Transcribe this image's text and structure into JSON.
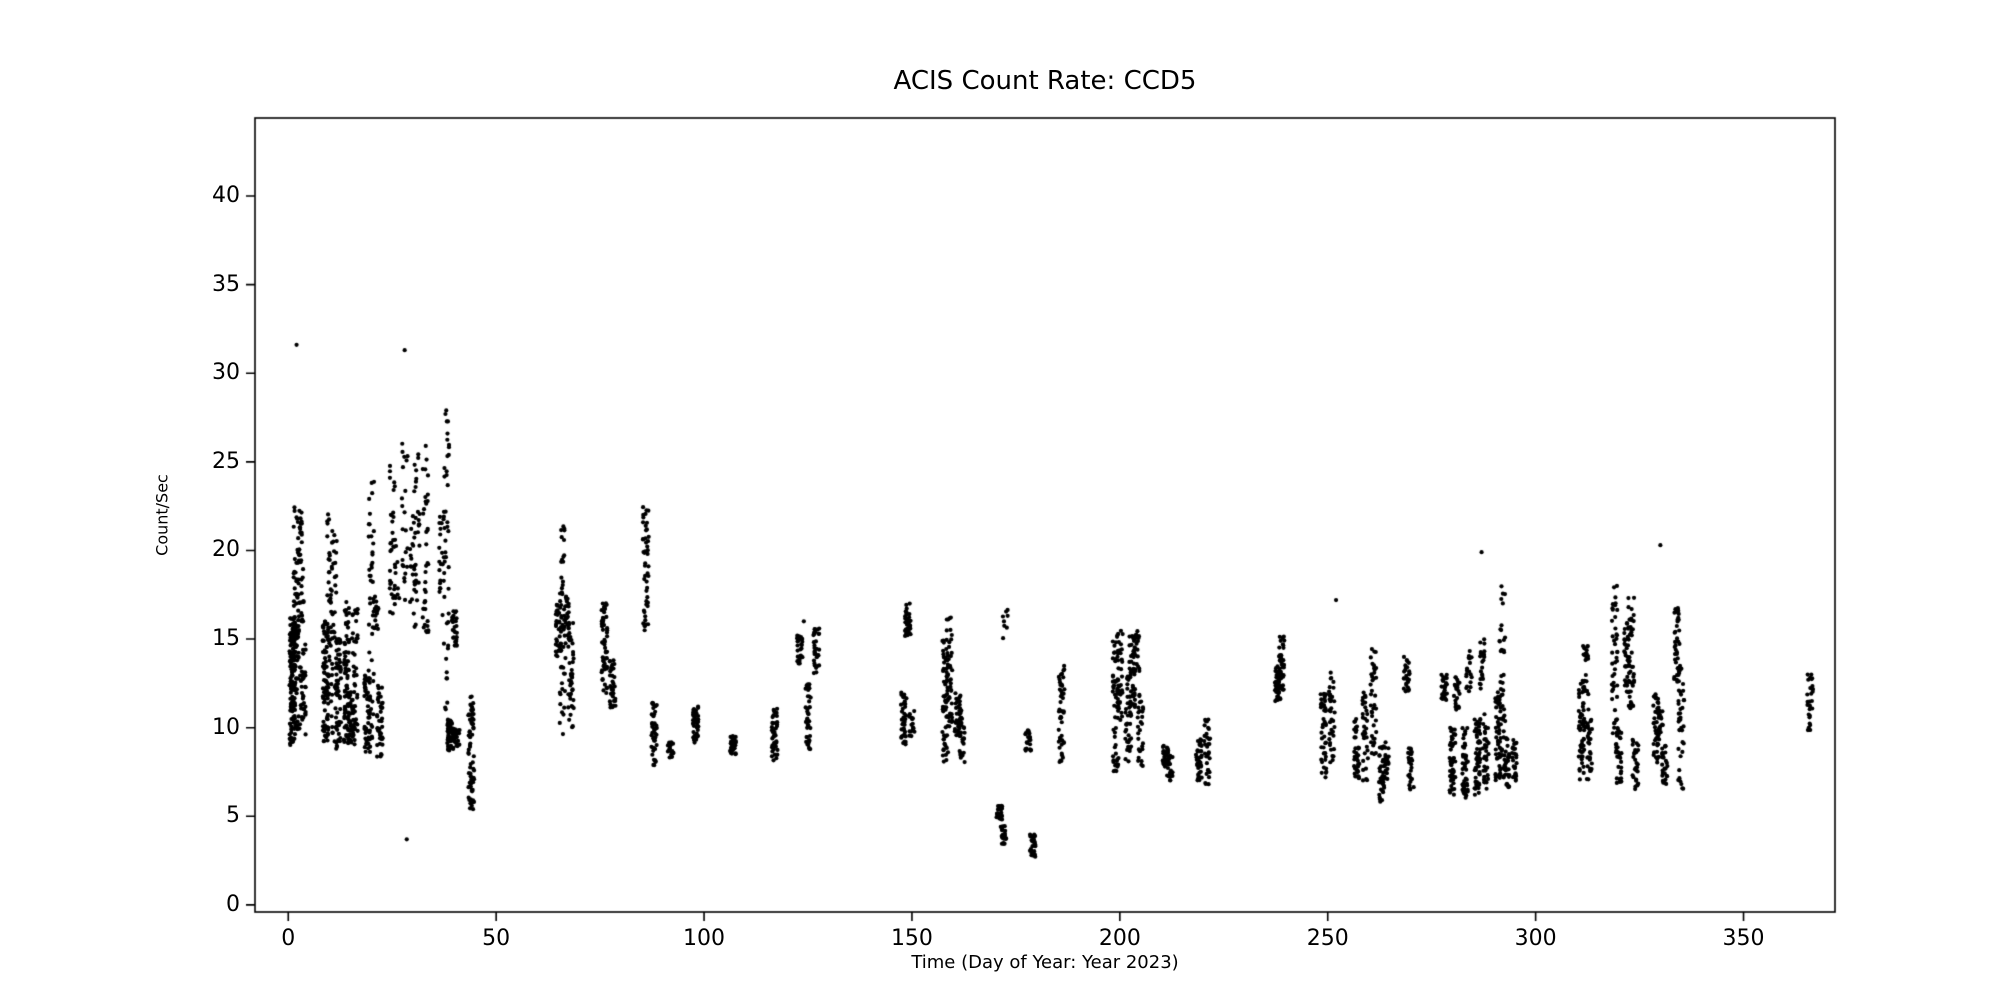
{
  "chart_data": {
    "type": "scatter",
    "title": "ACIS Count Rate: CCD5",
    "xlabel": "Time (Day of Year: Year 2023)",
    "ylabel": "Count/Sec",
    "xlim": [
      -8,
      372
    ],
    "ylim": [
      -0.4,
      44.4
    ],
    "xticks": [
      0,
      50,
      100,
      150,
      200,
      250,
      300,
      350
    ],
    "yticks": [
      0,
      5,
      10,
      15,
      20,
      25,
      30,
      35,
      40
    ],
    "grid": false,
    "legend": null,
    "marker_color": "#000000",
    "marker_radius_px": 2.1,
    "background_color": "#ffffff",
    "clusters_note": "each cluster = [day_of_year, count_rate_min, count_rate_max, approx_point_count]; vertical bands of dots",
    "clusters": [
      [
        1,
        9,
        16.2,
        130
      ],
      [
        1.5,
        13,
        16,
        60
      ],
      [
        2,
        9.5,
        22.5,
        70
      ],
      [
        3,
        16,
        22.3,
        35
      ],
      [
        3.5,
        9.5,
        15,
        40
      ],
      [
        9,
        9,
        16,
        80
      ],
      [
        10,
        9.5,
        22.3,
        45
      ],
      [
        11,
        9,
        21,
        35
      ],
      [
        12,
        8.8,
        15,
        55
      ],
      [
        14,
        9,
        17.3,
        70
      ],
      [
        15,
        9,
        12,
        45
      ],
      [
        16,
        8.7,
        17,
        45
      ],
      [
        19,
        8.5,
        13,
        55
      ],
      [
        20,
        9,
        24,
        45
      ],
      [
        21,
        15.5,
        17.5,
        18
      ],
      [
        22,
        8.3,
        12.5,
        40
      ],
      [
        25,
        16,
        25,
        28
      ],
      [
        26,
        16.5,
        21,
        14
      ],
      [
        28,
        17,
        26.2,
        22
      ],
      [
        30,
        15.5,
        22,
        22
      ],
      [
        31,
        17,
        25.5,
        26
      ],
      [
        33,
        15,
        26.2,
        38
      ],
      [
        37,
        16,
        22,
        22
      ],
      [
        38,
        9,
        27.9,
        42
      ],
      [
        39,
        8.7,
        10.5,
        55
      ],
      [
        40,
        14.5,
        16.6,
        28
      ],
      [
        40.5,
        8.9,
        10,
        25
      ],
      [
        44,
        5.4,
        11.8,
        70
      ],
      [
        65,
        14,
        17,
        40
      ],
      [
        66,
        9.5,
        21.4,
        45
      ],
      [
        67,
        15,
        17.5,
        28
      ],
      [
        68,
        10,
        16.2,
        40
      ],
      [
        76,
        11.5,
        17.2,
        55
      ],
      [
        78,
        11,
        14,
        35
      ],
      [
        86,
        15.3,
        22.7,
        48
      ],
      [
        88,
        7.8,
        11.5,
        45
      ],
      [
        92,
        8.3,
        9.2,
        22
      ],
      [
        98,
        9,
        11.2,
        45
      ],
      [
        107,
        8.5,
        9.6,
        35
      ],
      [
        117,
        8,
        11.2,
        45
      ],
      [
        123,
        13.5,
        15.2,
        28
      ],
      [
        125,
        8.4,
        12.5,
        40
      ],
      [
        127,
        12.8,
        15.6,
        32
      ],
      [
        148,
        9,
        12,
        38
      ],
      [
        149,
        15,
        17.2,
        35
      ],
      [
        150,
        9.5,
        11,
        18
      ],
      [
        158,
        8,
        15,
        60
      ],
      [
        159,
        10,
        16.5,
        45
      ],
      [
        161,
        9.5,
        12,
        35
      ],
      [
        162,
        8,
        11,
        28
      ],
      [
        171,
        4.8,
        5.6,
        25
      ],
      [
        172,
        3.3,
        4.6,
        28
      ],
      [
        172.5,
        15,
        16.8,
        8
      ],
      [
        178,
        8.7,
        10,
        22
      ],
      [
        179,
        2.7,
        4,
        30
      ],
      [
        186,
        8,
        13.5,
        48
      ],
      [
        199,
        7.5,
        15,
        50
      ],
      [
        200,
        10,
        15.5,
        40
      ],
      [
        202,
        8,
        13,
        45
      ],
      [
        203,
        11,
        15.2,
        40
      ],
      [
        204,
        13,
        15.5,
        22
      ],
      [
        205,
        7.8,
        12,
        28
      ],
      [
        211,
        7.8,
        9,
        28
      ],
      [
        212,
        7,
        8.5,
        22
      ],
      [
        219,
        7,
        9.5,
        38
      ],
      [
        221,
        6.8,
        10.5,
        32
      ],
      [
        238,
        11.5,
        13.5,
        48
      ],
      [
        239,
        12,
        15.3,
        38
      ],
      [
        249,
        7,
        12,
        45
      ],
      [
        251,
        8,
        13.2,
        38
      ],
      [
        257,
        7,
        10.5,
        38
      ],
      [
        259,
        7,
        12,
        32
      ],
      [
        261,
        8.5,
        14.5,
        38
      ],
      [
        263,
        5.8,
        9,
        32
      ],
      [
        264,
        7,
        9.2,
        22
      ],
      [
        269,
        12,
        14,
        28
      ],
      [
        270,
        6.5,
        9,
        28
      ],
      [
        278,
        11.5,
        13,
        28
      ],
      [
        280,
        6.2,
        10,
        48
      ],
      [
        281,
        11,
        13,
        22
      ],
      [
        283,
        6,
        10,
        48
      ],
      [
        284,
        12,
        14.5,
        18
      ],
      [
        286,
        6,
        10.5,
        60
      ],
      [
        287,
        12,
        15,
        22
      ],
      [
        288,
        6.5,
        11,
        38
      ],
      [
        291,
        7,
        12,
        48
      ],
      [
        292,
        8,
        18,
        42
      ],
      [
        293,
        6.5,
        9.5,
        38
      ],
      [
        295,
        7,
        9.5,
        28
      ],
      [
        311,
        7,
        13,
        45
      ],
      [
        312,
        10,
        14.8,
        38
      ],
      [
        313,
        7,
        11,
        28
      ],
      [
        319,
        9.5,
        18,
        45
      ],
      [
        320,
        6.8,
        10,
        32
      ],
      [
        322,
        12,
        16,
        38
      ],
      [
        323,
        11,
        17.5,
        38
      ],
      [
        324,
        6.5,
        9.5,
        28
      ],
      [
        329,
        8,
        12,
        38
      ],
      [
        330,
        9.5,
        11.5,
        22
      ],
      [
        331,
        6.8,
        9,
        28
      ],
      [
        334,
        12.5,
        16.8,
        38
      ],
      [
        335,
        6.5,
        14,
        42
      ],
      [
        366,
        9.8,
        13,
        30
      ]
    ],
    "outliers": [
      [
        2,
        31.6
      ],
      [
        28,
        31.3
      ],
      [
        28.5,
        3.7
      ],
      [
        38,
        27.9
      ],
      [
        124,
        16.0
      ],
      [
        252,
        17.2
      ],
      [
        287,
        19.9
      ],
      [
        330,
        20.3
      ]
    ]
  }
}
